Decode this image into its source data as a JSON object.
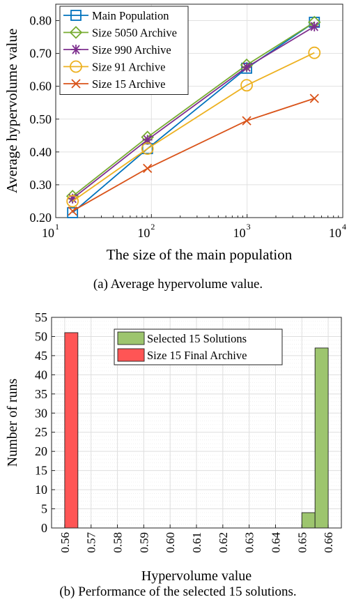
{
  "chart_data": [
    {
      "type": "line",
      "xlabel": "The size of the main population",
      "ylabel": "Average hypervolume value",
      "xscale": "log",
      "xlim": [
        10,
        10000
      ],
      "ylim": [
        0.2,
        0.85
      ],
      "x_ticks": [
        10,
        100,
        1000,
        10000
      ],
      "x_tick_labels": [
        {
          "base": "10",
          "exp": "1"
        },
        {
          "base": "10",
          "exp": "2"
        },
        {
          "base": "10",
          "exp": "3"
        },
        {
          "base": "10",
          "exp": "4"
        }
      ],
      "y_ticks": [
        0.2,
        0.3,
        0.4,
        0.5,
        0.6,
        0.7,
        0.8
      ],
      "y_tick_labels": [
        "0.20",
        "0.30",
        "0.40",
        "0.50",
        "0.60",
        "0.70",
        "0.80"
      ],
      "grid": true,
      "legend_position": "top-left",
      "x": [
        15,
        91,
        990,
        5050
      ],
      "series": [
        {
          "name": "Main Population",
          "color": "#0072BD",
          "marker": "square",
          "values": [
            0.215,
            0.41,
            0.655,
            0.795
          ]
        },
        {
          "name": "Size 5050 Archive",
          "color": "#77AC30",
          "marker": "diamond",
          "values": [
            0.265,
            0.445,
            0.665,
            0.795
          ]
        },
        {
          "name": "Size 990 Archive",
          "color": "#7E2F8E",
          "marker": "asterisk",
          "values": [
            0.258,
            0.437,
            0.658,
            0.782
          ]
        },
        {
          "name": "Size 91 Archive",
          "color": "#EDB120",
          "marker": "circle",
          "values": [
            0.25,
            0.41,
            0.603,
            0.702
          ]
        },
        {
          "name": "Size 15 Archive",
          "color": "#D95319",
          "marker": "x",
          "values": [
            0.22,
            0.35,
            0.495,
            0.563
          ]
        }
      ],
      "caption": "(a) Average hypervolume value."
    },
    {
      "type": "bar",
      "xlabel": "Hypervolume value",
      "ylabel": "Number of runs",
      "xlim": [
        0.555,
        0.665
      ],
      "ylim": [
        0,
        55
      ],
      "x_ticks": [
        0.56,
        0.57,
        0.58,
        0.59,
        0.6,
        0.61,
        0.62,
        0.63,
        0.64,
        0.65,
        0.66
      ],
      "x_tick_labels": [
        "0.56",
        "0.57",
        "0.58",
        "0.59",
        "0.60",
        "0.61",
        "0.62",
        "0.63",
        "0.64",
        "0.65",
        "0.66"
      ],
      "y_ticks": [
        0,
        5,
        10,
        15,
        20,
        25,
        30,
        35,
        40,
        45,
        50,
        55
      ],
      "y_tick_labels": [
        "0",
        "5",
        "10",
        "15",
        "20",
        "25",
        "30",
        "35",
        "40",
        "45",
        "50",
        "55"
      ],
      "grid": true,
      "legend_position": "top-center",
      "bin_width": 0.005,
      "series": [
        {
          "name": "Selected 15 Solutions",
          "color": "#9DC56E",
          "bins": [
            {
              "x": 0.6525,
              "value": 4
            },
            {
              "x": 0.6575,
              "value": 47
            }
          ]
        },
        {
          "name": "Size 15 Final Archive",
          "color": "#FF5555",
          "bins": [
            {
              "x": 0.5625,
              "value": 51
            }
          ]
        }
      ],
      "caption": "(b) Performance of the selected 15 solutions."
    }
  ]
}
